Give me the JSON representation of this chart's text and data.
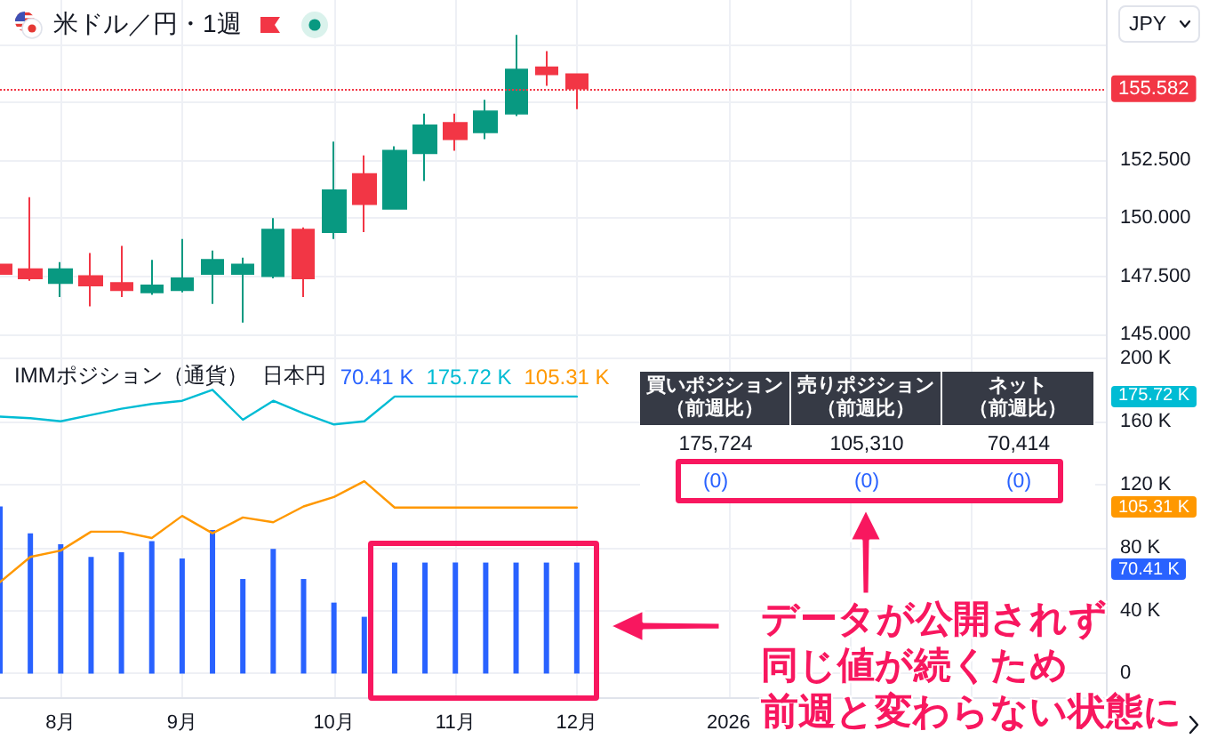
{
  "chart_data": [
    {
      "type": "candlestick",
      "title": "米ドル／円・1週",
      "x": [
        "2025-07-21",
        "2025-07-28",
        "2025-08-04",
        "2025-08-11",
        "2025-08-18",
        "2025-08-25",
        "2025-09-01",
        "2025-09-08",
        "2025-09-15",
        "2025-09-22",
        "2025-09-29",
        "2025-10-06",
        "2025-10-13",
        "2025-10-20",
        "2025-10-27",
        "2025-11-03",
        "2025-11-10",
        "2025-11-17",
        "2025-11-24",
        "2025-12-01"
      ],
      "ohlc": [
        [
          148.0,
          148.0,
          147.6,
          147.6
        ],
        [
          147.8,
          150.9,
          147.3,
          147.4
        ],
        [
          147.2,
          148.1,
          146.6,
          147.8
        ],
        [
          147.5,
          148.5,
          146.2,
          147.1
        ],
        [
          147.2,
          148.8,
          146.6,
          146.9
        ],
        [
          146.8,
          148.2,
          146.7,
          147.1
        ],
        [
          146.9,
          149.1,
          146.8,
          147.4
        ],
        [
          147.6,
          148.6,
          146.3,
          148.2
        ],
        [
          147.6,
          148.3,
          145.5,
          148.0
        ],
        [
          147.5,
          150.0,
          147.4,
          149.5
        ],
        [
          149.5,
          149.6,
          146.6,
          147.4
        ],
        [
          149.4,
          153.3,
          149.1,
          151.2
        ],
        [
          151.9,
          152.7,
          149.4,
          150.6
        ],
        [
          150.4,
          153.1,
          150.4,
          152.9
        ],
        [
          152.8,
          154.5,
          151.6,
          154.0
        ],
        [
          154.1,
          154.5,
          152.9,
          153.4
        ],
        [
          153.7,
          155.1,
          153.4,
          154.6
        ],
        [
          154.5,
          157.9,
          154.4,
          156.4
        ],
        [
          156.5,
          157.2,
          155.7,
          156.2
        ],
        [
          156.2,
          156.2,
          154.7,
          155.582
        ]
      ],
      "colors": [
        "#f23645",
        "#f23645",
        "#089981",
        "#f23645",
        "#f23645",
        "#089981",
        "#089981",
        "#089981",
        "#089981",
        "#089981",
        "#f23645",
        "#089981",
        "#f23645",
        "#089981",
        "#089981",
        "#f23645",
        "#089981",
        "#089981",
        "#f23645",
        "#f23645"
      ],
      "xlim": [
        "2025-07-21",
        "2026-04-02"
      ],
      "xticks": [
        {
          "value": "2025-08-04",
          "label": null
        },
        {
          "value": "2025-09-01",
          "label": null
        },
        {
          "value": "2025-10-06",
          "label": null
        },
        {
          "value": "2025-11-03",
          "label": null
        },
        {
          "value": "2025-12-01",
          "label": null
        },
        {
          "value": "2026-01-05",
          "label": null
        },
        {
          "value": "2026-02-02",
          "label": null
        },
        {
          "value": "2026-03-02",
          "label": null
        }
      ],
      "ylim": [
        144.3,
        159.4
      ],
      "yticks": [
        {
          "value": 145,
          "label": "145.000"
        },
        {
          "value": 147.5,
          "label": "147.500"
        },
        {
          "value": 150,
          "label": "150.000"
        },
        {
          "value": 152.5,
          "label": "152.500"
        },
        {
          "value": 155,
          "label": null
        },
        {
          "value": 157.5,
          "label": null
        }
      ],
      "grid": true,
      "tick_labels": "y",
      "ref_lines": [
        {
          "axis": "y",
          "value": 155.582,
          "label": "155.582",
          "color": "#f23645",
          "line_style": "dotted"
        }
      ],
      "annotations": [
        "JPY"
      ]
    },
    {
      "type": "bar",
      "title": "IMMポジション（通貨）",
      "subtitle": "日本円",
      "x": [
        "2025-07-21",
        "2025-07-28",
        "2025-08-04",
        "2025-08-11",
        "2025-08-18",
        "2025-08-25",
        "2025-09-01",
        "2025-09-08",
        "2025-09-15",
        "2025-09-22",
        "2025-09-29",
        "2025-10-06",
        "2025-10-13",
        "2025-10-20",
        "2025-10-27",
        "2025-11-03",
        "2025-11-10",
        "2025-11-17",
        "2025-11-24",
        "2025-12-01"
      ],
      "series": [
        {
          "name": "70.41 K",
          "color": "#2962ff",
          "values": [
            106,
            89,
            82,
            74,
            77,
            84,
            73,
            91,
            60,
            79,
            60,
            45,
            36,
            70.41,
            70.41,
            70.41,
            70.41,
            70.41,
            70.41,
            70.41
          ]
        },
        {
          "type": "line",
          "name": "175.72 K",
          "color": "#00bcd4",
          "values": [
            163,
            162,
            160,
            164,
            168,
            171,
            173,
            180,
            161,
            173,
            165,
            158,
            160,
            175.72,
            175.72,
            175.72,
            175.72,
            175.72,
            175.72,
            175.72
          ]
        },
        {
          "type": "line",
          "name": "105.31 K",
          "color": "#ff9800",
          "values": [
            58,
            74,
            78,
            90,
            90,
            86,
            100,
            89,
            99,
            96,
            106,
            112,
            122,
            105.31,
            105.31,
            105.31,
            105.31,
            105.31,
            105.31,
            105.31
          ]
        }
      ],
      "xlim": [
        "2025-07-21",
        "2026-04-02"
      ],
      "xticks": [
        {
          "value": "2025-08-04",
          "label": "8月"
        },
        {
          "value": "2025-09-01",
          "label": "9月"
        },
        {
          "value": "2025-10-06",
          "label": "10月"
        },
        {
          "value": "2025-11-03",
          "label": "11月"
        },
        {
          "value": "2025-12-01",
          "label": "12月"
        },
        {
          "value": "2026-01-05",
          "label": "2026"
        },
        {
          "value": "2026-02-02",
          "label": null
        },
        {
          "value": "2026-03-02",
          "label": null
        }
      ],
      "ylim": [
        -15,
        205
      ],
      "yticks": [
        0,
        {
          "value": 40,
          "label": "40 K"
        },
        {
          "value": 80,
          "label": "80 K"
        },
        {
          "value": 120,
          "label": "120 K"
        },
        {
          "value": 160,
          "label": "160 K"
        },
        {
          "value": 200,
          "label": "200 K"
        }
      ],
      "grid": true,
      "marker": "none",
      "legend": "top left",
      "annotations": [
        "買いポジション（前週比）",
        "売りポジション（前週比）",
        "ネット（前週比）",
        "175,724",
        "105,310",
        "70,414",
        "(0)",
        "(0)",
        "(0)",
        "データが公開されず",
        "同じ値が続くため",
        "前週と変わらない状態に"
      ]
    }
  ]
}
